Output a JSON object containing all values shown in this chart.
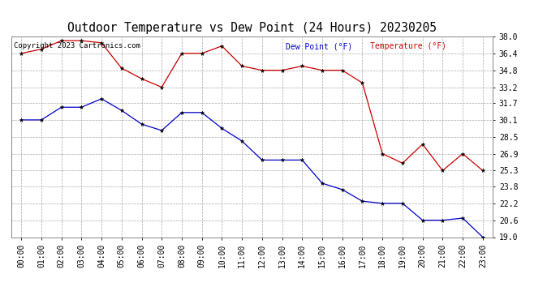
{
  "title": "Outdoor Temperature vs Dew Point (24 Hours) 20230205",
  "copyright": "Copyright 2023 Cartronics.com",
  "legend_dew": "Dew Point (°F)",
  "legend_temp": "Temperature (°F)",
  "x_labels": [
    "00:00",
    "01:00",
    "02:00",
    "03:00",
    "04:00",
    "05:00",
    "06:00",
    "07:00",
    "08:00",
    "09:00",
    "10:00",
    "11:00",
    "12:00",
    "13:00",
    "14:00",
    "15:00",
    "16:00",
    "17:00",
    "18:00",
    "19:00",
    "20:00",
    "21:00",
    "22:00",
    "23:00"
  ],
  "temperature": [
    36.4,
    36.8,
    37.6,
    37.6,
    37.4,
    35.0,
    34.0,
    33.2,
    36.4,
    36.4,
    37.1,
    35.2,
    34.8,
    34.8,
    35.2,
    34.8,
    34.8,
    33.6,
    26.9,
    26.0,
    27.8,
    25.3,
    26.9,
    25.3
  ],
  "dew_point": [
    30.1,
    30.1,
    31.3,
    31.3,
    32.1,
    31.0,
    29.7,
    29.1,
    30.8,
    30.8,
    29.3,
    28.1,
    26.3,
    26.3,
    26.3,
    24.1,
    23.5,
    22.4,
    22.2,
    22.2,
    20.6,
    20.6,
    20.8,
    19.0
  ],
  "y_ticks": [
    19.0,
    20.6,
    22.2,
    23.8,
    25.3,
    26.9,
    28.5,
    30.1,
    31.7,
    33.2,
    34.8,
    36.4,
    38.0
  ],
  "y_min": 19.0,
  "y_max": 38.0,
  "temp_color": "#cc0000",
  "dew_color": "#0000cc",
  "background_color": "#ffffff",
  "grid_color": "#aaaaaa",
  "title_fontsize": 10.5,
  "label_fontsize": 7,
  "copyright_fontsize": 6.5,
  "legend_fontsize": 7
}
